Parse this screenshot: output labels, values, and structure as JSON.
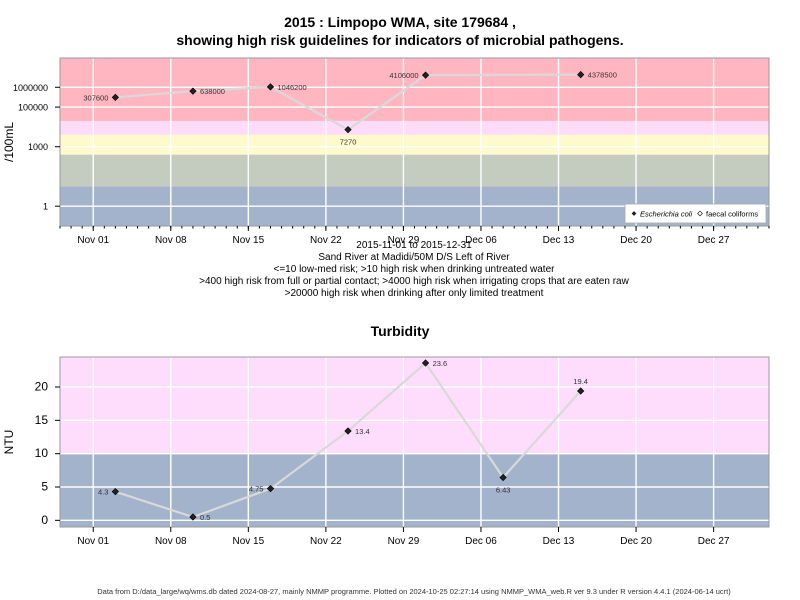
{
  "title": {
    "line1": "2015 : Limpopo WMA, site 179684 ,",
    "line2": "showing high risk guidelines for indicators of microbial pathogens."
  },
  "captions": {
    "date_range": "2015-11-01 to 2015-12-31",
    "site": "Sand River at Madidi/50M D/S Left of River",
    "note1": "<=10 low-med risk; >10 high risk when drinking untreated water",
    "note2": ">400 high risk from full or partial contact; >4000 high risk when irrigating crops that are eaten raw",
    "note3": ">20000 high risk when drinking after only limited treatment"
  },
  "footer": "Data from D:/data_large/wq/wms.db dated 2024-08-27, mainly NMMP programme. Plotted on 2024-10-25 02:27:14 using NMMP_WMA_web.R ver 9.3 under R version 4.4.1 (2024-06-14 ucrt)",
  "colors": {
    "band_blue": "#a3b3cb",
    "band_gray": "#c4cbbf",
    "band_yellow": "#fffacb",
    "band_pinklight": "#fedcf9",
    "band_pink": "#ffb6c1",
    "band_turb_pink": "#fedcfb",
    "line": "#d9d9d9",
    "point": "#222222"
  },
  "chart_data": [
    {
      "type": "line",
      "title": "",
      "ylabel": "/100mL",
      "y_scale": "log",
      "ylim": [
        0.1,
        30000000
      ],
      "xlim": [
        "2015-10-29",
        "2016-01-01"
      ],
      "x_ticks": [
        "Nov 01",
        "Nov 08",
        "Nov 15",
        "Nov 22",
        "Nov 29",
        "Dec 06",
        "Dec 13",
        "Dec 20",
        "Dec 27"
      ],
      "x_tick_dates": [
        "2015-11-01",
        "2015-11-08",
        "2015-11-15",
        "2015-11-22",
        "2015-11-29",
        "2015-12-06",
        "2015-12-13",
        "2015-12-20",
        "2015-12-27"
      ],
      "y_ticks": [
        1,
        1000,
        100000,
        1000000
      ],
      "y_tick_labels": [
        "1",
        "1000",
        "100000",
        "1000000"
      ],
      "bands": [
        {
          "from": 0.1,
          "to": 10,
          "color": "band_blue"
        },
        {
          "from": 10,
          "to": 400,
          "color": "band_gray"
        },
        {
          "from": 400,
          "to": 4000,
          "color": "band_yellow"
        },
        {
          "from": 4000,
          "to": 20000,
          "color": "band_pinklight"
        },
        {
          "from": 20000,
          "to": 30000000,
          "color": "band_pink"
        }
      ],
      "series": [
        {
          "name": "Escherichia coli",
          "x": [
            "2015-11-03",
            "2015-11-10",
            "2015-11-17",
            "2015-11-24",
            "2015-12-01",
            "2015-12-15"
          ],
          "values": [
            307600,
            638000,
            1046200,
            7270,
            4106000,
            4378500
          ],
          "labels": [
            "307600",
            "638000",
            "1046200",
            "7270",
            "4106000",
            "4378500"
          ],
          "label_pos": [
            "left",
            "right",
            "right",
            "below",
            "left",
            "right"
          ]
        }
      ],
      "legend": {
        "entries": [
          "Escherichia coli",
          "faecal coliforms"
        ],
        "placement": "bottom-right"
      }
    },
    {
      "type": "line",
      "title": "Turbidity",
      "ylabel": "NTU",
      "y_scale": "linear",
      "ylim": [
        -1,
        24.5
      ],
      "xlim": [
        "2015-10-29",
        "2016-01-01"
      ],
      "x_ticks": [
        "Nov 01",
        "Nov 08",
        "Nov 15",
        "Nov 22",
        "Nov 29",
        "Dec 06",
        "Dec 13",
        "Dec 20",
        "Dec 27"
      ],
      "x_tick_dates": [
        "2015-11-01",
        "2015-11-08",
        "2015-11-15",
        "2015-11-22",
        "2015-11-29",
        "2015-12-06",
        "2015-12-13",
        "2015-12-20",
        "2015-12-27"
      ],
      "y_ticks": [
        0,
        5,
        10,
        15,
        20
      ],
      "y_tick_labels": [
        "0",
        "5",
        "10",
        "15",
        "20"
      ],
      "bands": [
        {
          "from": -1,
          "to": 10,
          "color": "band_blue"
        },
        {
          "from": 10,
          "to": 24.5,
          "color": "band_turb_pink"
        }
      ],
      "series": [
        {
          "name": "",
          "x": [
            "2015-11-03",
            "2015-11-10",
            "2015-11-17",
            "2015-11-24",
            "2015-12-01",
            "2015-12-08",
            "2015-12-15"
          ],
          "values": [
            4.3,
            0.5,
            4.75,
            13.4,
            23.6,
            6.43,
            19.4
          ],
          "labels": [
            "4.3",
            "0.5",
            "4.75",
            "13.4",
            "23.6",
            "6.43",
            "19.4"
          ],
          "label_pos": [
            "left",
            "right",
            "left",
            "right",
            "right",
            "below",
            "above"
          ]
        }
      ]
    }
  ]
}
